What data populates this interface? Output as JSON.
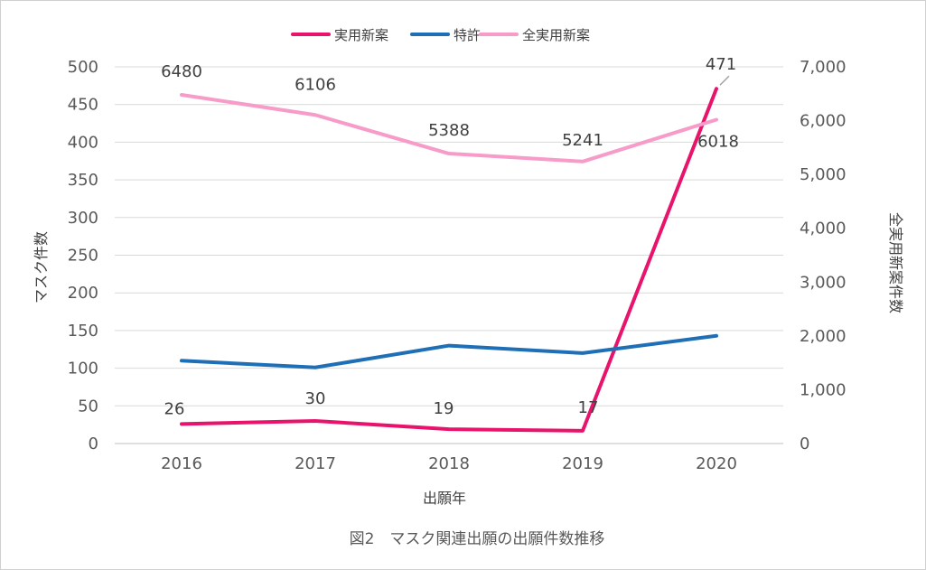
{
  "chart_data": {
    "type": "line",
    "categories": [
      "2016",
      "2017",
      "2018",
      "2019",
      "2020"
    ],
    "series": [
      {
        "name": "実用新案",
        "axis": "left",
        "color": "#e8146c",
        "values": [
          26,
          30,
          19,
          17,
          471
        ],
        "labels": [
          "26",
          "30",
          "19",
          "17",
          "471"
        ]
      },
      {
        "name": "特許",
        "axis": "left",
        "color": "#1f6fb7",
        "values": [
          110,
          101,
          130,
          120,
          143
        ],
        "labels": [
          "",
          "",
          "",
          "",
          ""
        ]
      },
      {
        "name": "全実用新案",
        "axis": "right",
        "color": "#f79bc9",
        "values": [
          6480,
          6106,
          5388,
          5241,
          6018
        ],
        "labels": [
          "6480",
          "6106",
          "5388",
          "5241",
          "6018"
        ]
      }
    ],
    "xlabel": "出願年",
    "ylabel": "マスク件数",
    "y2label": "全実用新案件数",
    "ylim": [
      0,
      500
    ],
    "y2lim": [
      0,
      7000
    ],
    "yticks": [
      "0",
      "50",
      "100",
      "150",
      "200",
      "250",
      "300",
      "350",
      "400",
      "450",
      "500"
    ],
    "y2ticks": [
      "0",
      "1,000",
      "2,000",
      "3,000",
      "4,000",
      "5,000",
      "6,000",
      "7,000"
    ],
    "grid": true,
    "legend_position": "top"
  },
  "caption": "図2　マスク関連出願の出願件数推移"
}
